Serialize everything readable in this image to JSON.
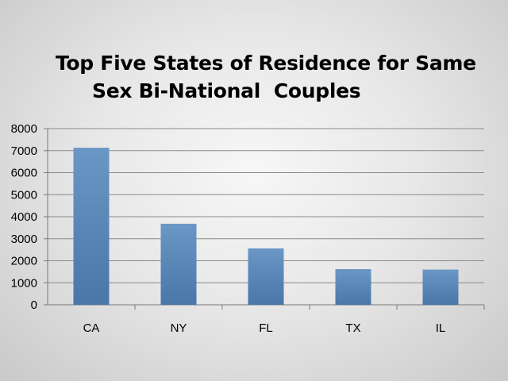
{
  "chart_data": {
    "type": "bar",
    "title_line1": "Top Five States of Residence for Same",
    "title_line2": "Sex Bi-National  Couples",
    "categories": [
      "CA",
      "NY",
      "FL",
      "TX",
      "IL"
    ],
    "values": [
      7130,
      3680,
      2560,
      1620,
      1600
    ],
    "ylim": [
      0,
      8000
    ],
    "yticks": [
      "0",
      "1000",
      "2000",
      "3000",
      "4000",
      "5000",
      "6000",
      "7000",
      "8000"
    ],
    "grid": true,
    "legend": "none",
    "bar_color_top": "#6b97c6",
    "bar_color_bottom": "#4a76a8"
  }
}
